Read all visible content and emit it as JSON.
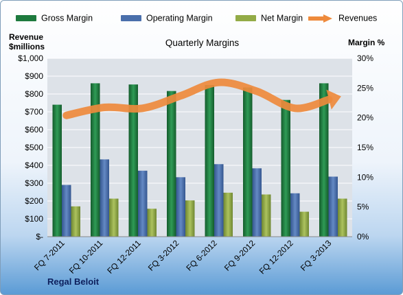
{
  "legend": {
    "gross": "Gross Margin",
    "operating": "Operating Margin",
    "net": "Net Margin",
    "revenues": "Revenues"
  },
  "chart_title": "Quarterly Margins",
  "y_left_title": [
    "Revenue",
    "$millions"
  ],
  "y_right_title": "Margin %",
  "company": "Regal Beloit",
  "colors": {
    "gross": "#1e7a3e",
    "operating": "#4a6fab",
    "net": "#93ab47",
    "revenues": "#ee8a3c",
    "plot_bg": "#dde2e8",
    "grid": "#ffffff"
  },
  "chart_data": {
    "type": "bar",
    "title": "Quarterly Margins",
    "categories": [
      "FQ 7-2011",
      "FQ 10-2011",
      "FQ 12-2011",
      "FQ 3-2012",
      "FQ 6-2012",
      "FQ 9-2012",
      "FQ 12-2012",
      "FQ 3-2013"
    ],
    "left_axis": {
      "label": "Revenue $millions",
      "ylim": [
        0,
        1000
      ],
      "ticks": [
        0,
        100,
        200,
        300,
        400,
        500,
        600,
        700,
        800,
        900,
        1000
      ],
      "tick_labels": [
        "$-",
        "$100",
        "$200",
        "$300",
        "$400",
        "$500",
        "$600",
        "$700",
        "$800",
        "$900",
        "$1,000"
      ]
    },
    "right_axis": {
      "label": "Margin %",
      "ylim": [
        0,
        30
      ],
      "ticks": [
        0,
        5,
        10,
        15,
        20,
        25,
        30
      ],
      "tick_labels": [
        "0%",
        "5%",
        "10%",
        "15%",
        "20%",
        "25%",
        "30%"
      ]
    },
    "series": [
      {
        "name": "Gross Margin",
        "axis": "right",
        "kind": "bar",
        "values": [
          22.2,
          25.8,
          25.6,
          24.5,
          25.5,
          25.1,
          23.0,
          25.8
        ]
      },
      {
        "name": "Operating Margin",
        "axis": "right",
        "kind": "bar",
        "values": [
          8.7,
          13.0,
          11.1,
          10.0,
          12.2,
          11.5,
          7.3,
          10.1
        ]
      },
      {
        "name": "Net Margin",
        "axis": "right",
        "kind": "bar",
        "values": [
          5.1,
          6.4,
          4.7,
          6.1,
          7.4,
          7.1,
          4.2,
          6.4
        ]
      },
      {
        "name": "Revenues",
        "axis": "left",
        "kind": "line",
        "values": [
          680,
          725,
          720,
          790,
          865,
          815,
          720,
          775
        ]
      }
    ],
    "grid": true,
    "legend_position": "top"
  }
}
